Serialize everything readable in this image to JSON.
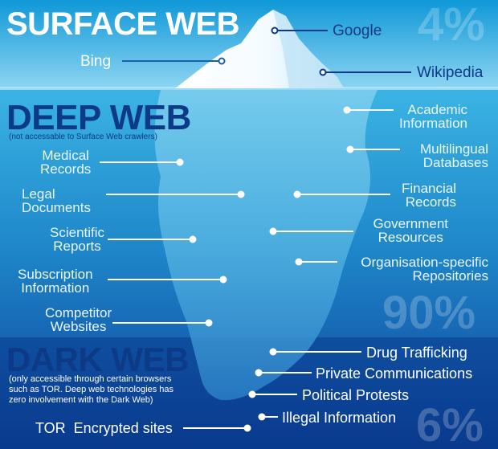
{
  "surface": {
    "title": "SURFACE WEB",
    "percent": "4%",
    "items": [
      "Google",
      "Bing",
      "Wikipedia"
    ]
  },
  "deep": {
    "title": "DEEP WEB",
    "subtitle": "(not accessable to Surface Web crawlers)",
    "percent": "90%",
    "left_items": [
      [
        "Medical",
        "Records"
      ],
      [
        "Legal",
        "Documents"
      ],
      [
        "Scientific",
        "Reports"
      ],
      [
        "Subscription",
        "Information"
      ],
      [
        "Competitor",
        "Websites"
      ]
    ],
    "right_items": [
      [
        "Academic",
        "Information"
      ],
      [
        "Multilingual",
        "Databases"
      ],
      [
        "Financial",
        "Records"
      ],
      [
        "Government",
        "Resources"
      ],
      [
        "Organisation-specific",
        "Repositories"
      ]
    ]
  },
  "dark": {
    "title": "DARK WEB",
    "subtitle": [
      "(only accessible through certain browsers",
      "such as TOR. Deep web technologies has",
      "zero involvement with the Dark Web)"
    ],
    "percent": "6%",
    "items": [
      "Drug Trafficking",
      "Private Communications",
      "Political Protests",
      "Illegal Information",
      "TOR  Encrypted sites"
    ]
  },
  "colors": {
    "sky_top": "#1aa3e0",
    "sky_bottom": "#8fd6f2",
    "water_top": "#2aa7dc",
    "water_mid": "#1b77bf",
    "water_deep": "#0b3f92",
    "ice_top": "#ffffff",
    "ice_shade": "#bfe6f7",
    "berg_under": "#5fc1e8",
    "title_dark": "#0d3a86",
    "label_light": "#eaf7ff",
    "label_dark": "#0d3a86"
  }
}
